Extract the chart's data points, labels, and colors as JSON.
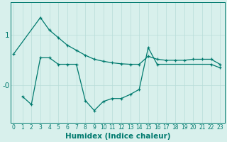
{
  "xlabel": "Humidex (Indice chaleur)",
  "bg_color": "#d8f0ec",
  "line_color": "#007a6e",
  "grid_color": "#b8ddd8",
  "line1_x": [
    0,
    3,
    4,
    5,
    6,
    7,
    8,
    9,
    10,
    11,
    12,
    13,
    14,
    15,
    16,
    17,
    18,
    19,
    20,
    21,
    22,
    23
  ],
  "line1_y": [
    0.62,
    1.35,
    1.1,
    0.95,
    0.8,
    0.7,
    0.6,
    0.52,
    0.48,
    0.45,
    0.43,
    0.42,
    0.42,
    0.58,
    0.52,
    0.5,
    0.5,
    0.5,
    0.52,
    0.52,
    0.52,
    0.42
  ],
  "line2_x": [
    1,
    2,
    3,
    4,
    5,
    6,
    7,
    8,
    9,
    10,
    11,
    12,
    13,
    14,
    15,
    16,
    22,
    23
  ],
  "line2_y": [
    -0.22,
    -0.38,
    0.55,
    0.55,
    0.42,
    0.42,
    0.42,
    -0.3,
    -0.5,
    -0.32,
    -0.26,
    -0.26,
    -0.18,
    -0.08,
    0.75,
    0.42,
    0.42,
    0.35
  ],
  "yticks": [
    1.0,
    0.0
  ],
  "ytick_labels": [
    "1",
    "-0"
  ],
  "ylim": [
    -0.75,
    1.65
  ],
  "xlim": [
    -0.3,
    23.5
  ],
  "fontsize": 7.5
}
